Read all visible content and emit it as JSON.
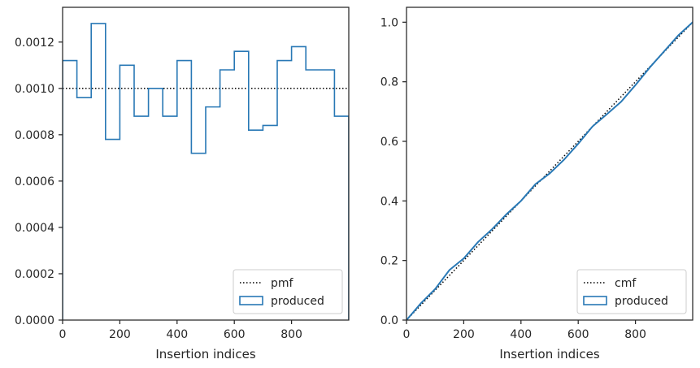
{
  "chart_data": [
    {
      "type": "histogram",
      "xlabel": "Insertion indices",
      "ylabel": "",
      "xlim": [
        0,
        1000
      ],
      "ylim": [
        0,
        0.00135
      ],
      "xticks": [
        "0",
        "200",
        "400",
        "600",
        "800"
      ],
      "yticks": [
        "0.0000",
        "0.0002",
        "0.0004",
        "0.0006",
        "0.0008",
        "0.0010",
        "0.0012"
      ],
      "grid": false,
      "legend_position": "bottom-right",
      "legend": [
        "pmf",
        "produced"
      ],
      "series": [
        {
          "name": "pmf",
          "style": "dotted",
          "color": "#000000",
          "x": [
            0,
            1000
          ],
          "y": [
            0.001,
            0.001
          ]
        },
        {
          "name": "produced",
          "style": "step",
          "color": "#2878b5",
          "bin_edges": [
            0,
            50,
            100,
            150,
            200,
            250,
            300,
            350,
            400,
            450,
            500,
            550,
            600,
            650,
            700,
            750,
            800,
            850,
            900,
            950,
            1000
          ],
          "values": [
            0.00112,
            0.00096,
            0.00128,
            0.00078,
            0.0011,
            0.00088,
            0.001,
            0.00088,
            0.00112,
            0.00072,
            0.00092,
            0.00108,
            0.00116,
            0.00082,
            0.00084,
            0.00112,
            0.00118,
            0.00108,
            0.00108,
            0.00088
          ]
        }
      ]
    },
    {
      "type": "line",
      "xlabel": "Insertion indices",
      "ylabel": "",
      "xlim": [
        0,
        1000
      ],
      "ylim": [
        0,
        1.05
      ],
      "xticks": [
        "0",
        "200",
        "400",
        "600",
        "800"
      ],
      "yticks": [
        "0.0",
        "0.2",
        "0.4",
        "0.6",
        "0.8",
        "1.0"
      ],
      "grid": false,
      "legend_position": "bottom-right",
      "legend": [
        "cmf",
        "produced"
      ],
      "series": [
        {
          "name": "cmf",
          "style": "dotted",
          "color": "#000000",
          "x": [
            0,
            1000
          ],
          "y": [
            0,
            1
          ]
        },
        {
          "name": "produced",
          "style": "line",
          "color": "#2878b5",
          "x": [
            0,
            50,
            100,
            150,
            200,
            250,
            300,
            350,
            400,
            450,
            500,
            550,
            600,
            650,
            700,
            750,
            800,
            850,
            900,
            950,
            1000
          ],
          "y": [
            0,
            0.056,
            0.104,
            0.168,
            0.207,
            0.262,
            0.306,
            0.356,
            0.4,
            0.456,
            0.492,
            0.538,
            0.592,
            0.65,
            0.691,
            0.733,
            0.789,
            0.848,
            0.902,
            0.956,
            1.0
          ]
        }
      ]
    }
  ]
}
